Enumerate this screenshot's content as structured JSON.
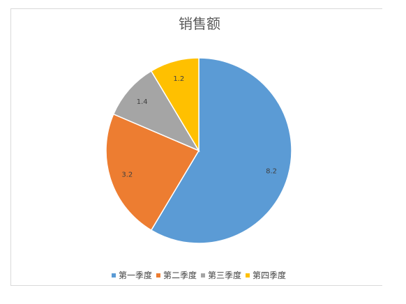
{
  "chart_data": {
    "type": "pie",
    "title": "销售额",
    "categories": [
      "第一季度",
      "第二季度",
      "第三季度",
      "第四季度"
    ],
    "values": [
      8.2,
      3.2,
      1.4,
      1.2
    ],
    "colors": [
      "#5b9bd5",
      "#ed7d31",
      "#a5a5a5",
      "#ffc000"
    ],
    "data_labels": [
      "8.2",
      "3.2",
      "1.4",
      "1.2"
    ],
    "legend_position": "bottom"
  }
}
